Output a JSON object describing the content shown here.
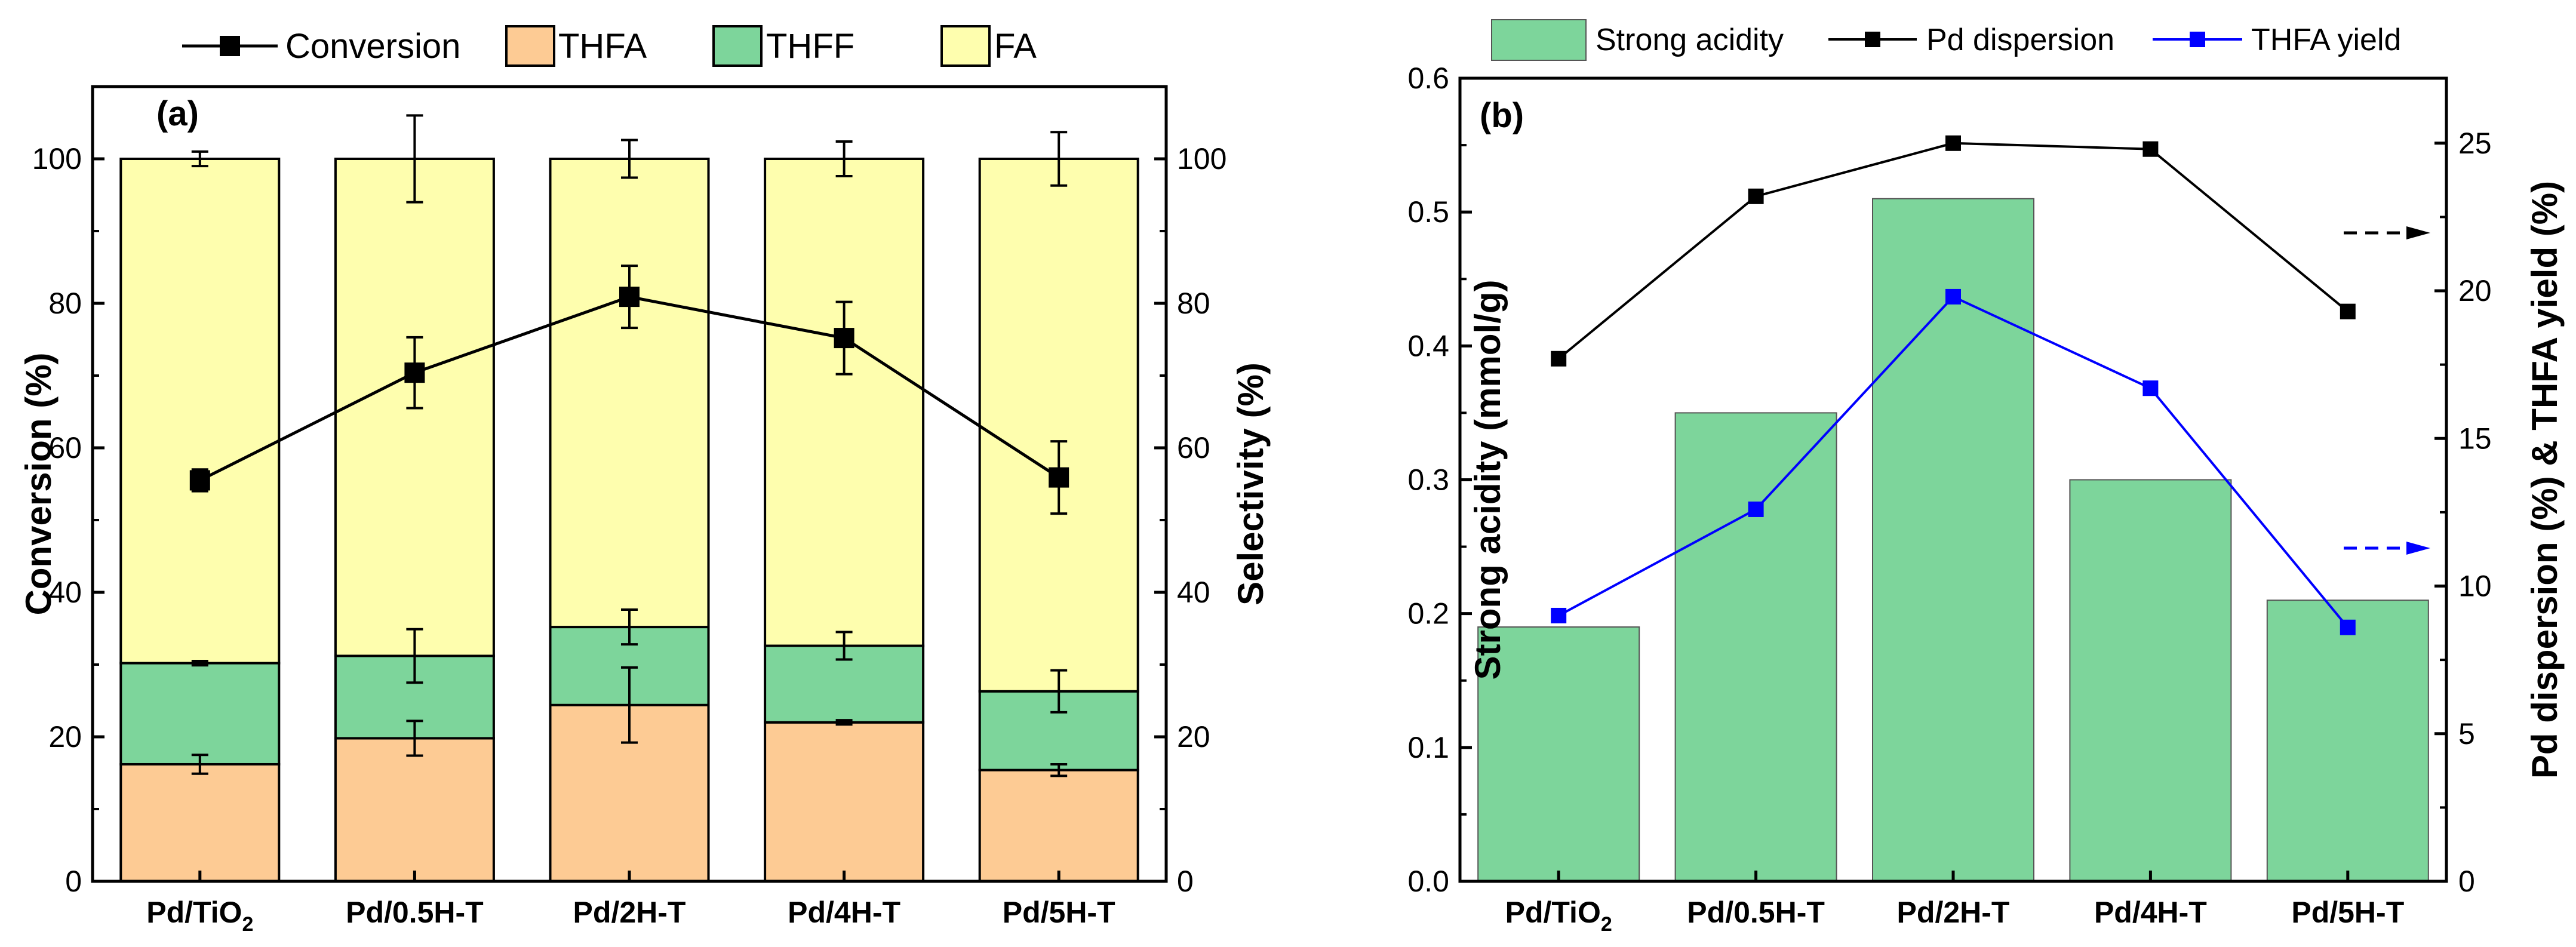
{
  "chart_data": [
    {
      "panel": "(a)",
      "type": "stacked-bar+line",
      "categories": [
        {
          "name": "Pd/TiO",
          "sub": "2"
        },
        {
          "name": "Pd/0.5H-T",
          "sub": ""
        },
        {
          "name": "Pd/2H-T",
          "sub": ""
        },
        {
          "name": "Pd/4H-T",
          "sub": ""
        },
        {
          "name": "Pd/5H-T",
          "sub": ""
        }
      ],
      "ylabel_left": "Conversion (%)",
      "ylabel_right": "Selectivity (%)",
      "ylim": [
        0,
        110
      ],
      "yticks": [
        0,
        20,
        40,
        60,
        80,
        100
      ],
      "legend": [
        "Conversion",
        "THFA",
        "THFF",
        "FA"
      ],
      "series": [
        {
          "name": "THFA",
          "color": "#fdcb94",
          "values": [
            16.2,
            19.8,
            24.4,
            22.0,
            15.4
          ],
          "errors": [
            1.3,
            2.4,
            5.2,
            0.3,
            0.8
          ]
        },
        {
          "name": "THFF",
          "color": "#7dd59b",
          "values": [
            14.0,
            11.4,
            10.8,
            10.6,
            10.9
          ],
          "errors": [
            0.3,
            3.7,
            2.4,
            1.9,
            2.9
          ]
        },
        {
          "name": "FA",
          "color": "#fefeae",
          "values": [
            69.8,
            68.8,
            64.8,
            67.4,
            73.7
          ],
          "errors": [
            1.0,
            6.0,
            2.6,
            2.4,
            3.7
          ]
        }
      ],
      "line": {
        "name": "Conversion",
        "color": "#000000",
        "values": [
          55.5,
          70.4,
          80.9,
          75.2,
          55.9
        ],
        "errors": [
          1.5,
          4.9,
          4.3,
          5.0,
          5.0
        ]
      }
    },
    {
      "panel": "(b)",
      "type": "bar+line",
      "categories": [
        {
          "name": "Pd/TiO",
          "sub": "2"
        },
        {
          "name": "Pd/0.5H-T",
          "sub": ""
        },
        {
          "name": "Pd/2H-T",
          "sub": ""
        },
        {
          "name": "Pd/4H-T",
          "sub": ""
        },
        {
          "name": "Pd/5H-T",
          "sub": ""
        }
      ],
      "ylabel_left": "Strong acidity (mmol/g)",
      "ylabel_right": "Pd dispersion (%) & THFA yield (%)",
      "ylim_left": [
        0,
        0.6
      ],
      "yticks_left": [
        "0.0",
        "0.1",
        "0.2",
        "0.3",
        "0.4",
        "0.5",
        "0.6"
      ],
      "ylim_right": [
        0,
        27.2
      ],
      "yticks_right": [
        0,
        5,
        10,
        15,
        20,
        25
      ],
      "legend": [
        "Strong acidity",
        "Pd dispersion",
        "THFA yield"
      ],
      "bars": {
        "name": "Strong acidity",
        "color": "#7dd59b",
        "values": [
          0.19,
          0.35,
          0.51,
          0.3,
          0.21
        ]
      },
      "lines": [
        {
          "name": "Pd dispersion",
          "color": "#000000",
          "values": [
            17.7,
            23.2,
            25.0,
            24.8,
            19.3
          ]
        },
        {
          "name": "THFA yield",
          "color": "#0000ff",
          "values": [
            9.0,
            12.6,
            19.8,
            16.7,
            8.6
          ]
        }
      ]
    }
  ]
}
